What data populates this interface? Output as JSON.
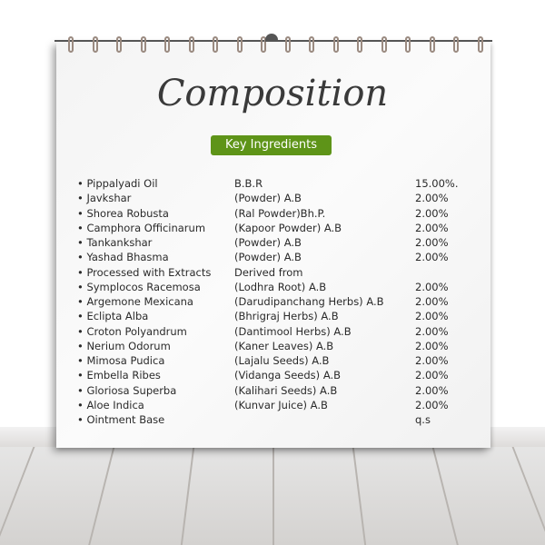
{
  "title": "Composition",
  "badge": "Key Ingredients",
  "colors": {
    "badge": "#5e9418",
    "title": "#3a3a3a"
  },
  "ingredients": [
    {
      "name": "• Pippalyadi Oil",
      "source": "B.B.R",
      "amount": "15.00%."
    },
    {
      "name": "• Javkshar",
      "source": "(Powder) A.B",
      "amount": "2.00%"
    },
    {
      "name": "• Shorea Robusta",
      "source": "(Ral Powder)Bh.P.",
      "amount": "2.00%"
    },
    {
      "name": "• Camphora Officinarum",
      "source": "(Kapoor Powder) A.B",
      "amount": "2.00%"
    },
    {
      "name": "• Tankankshar",
      "source": "(Powder) A.B",
      "amount": "2.00%"
    },
    {
      "name": "• Yashad Bhasma",
      "source": "(Powder) A.B",
      "amount": "2.00%"
    },
    {
      "name": "• Processed with Extracts",
      "source": "Derived from",
      "amount": ""
    },
    {
      "name": "• Symplocos Racemosa",
      "source": "(Lodhra Root) A.B",
      "amount": "2.00%"
    },
    {
      "name": "• Argemone Mexicana",
      "source": "(Darudipanchang Herbs) A.B",
      "amount": "2.00%"
    },
    {
      "name": "• Eclipta Alba",
      "source": "(Bhrigraj Herbs) A.B",
      "amount": "2.00%"
    },
    {
      "name": "• Croton Polyandrum",
      "source": "(Dantimool Herbs) A.B",
      "amount": "2.00%"
    },
    {
      "name": "• Nerium Odorum",
      "source": "(Kaner Leaves) A.B",
      "amount": "2.00%"
    },
    {
      "name": "• Mimosa Pudica",
      "source": "(Lajalu Seeds) A.B",
      "amount": "2.00%"
    },
    {
      "name": "• Embella Ribes",
      "source": "(Vidanga Seeds) A.B",
      "amount": "2.00%"
    },
    {
      "name": "• Gloriosa Superba",
      "source": "(Kalihari Seeds) A.B",
      "amount": "2.00%"
    },
    {
      "name": "• Aloe Indica",
      "source": "(Kunvar Juice) A.B",
      "amount": "2.00%"
    },
    {
      "name": "• Ointment Base",
      "source": "",
      "amount": "q.s"
    }
  ]
}
